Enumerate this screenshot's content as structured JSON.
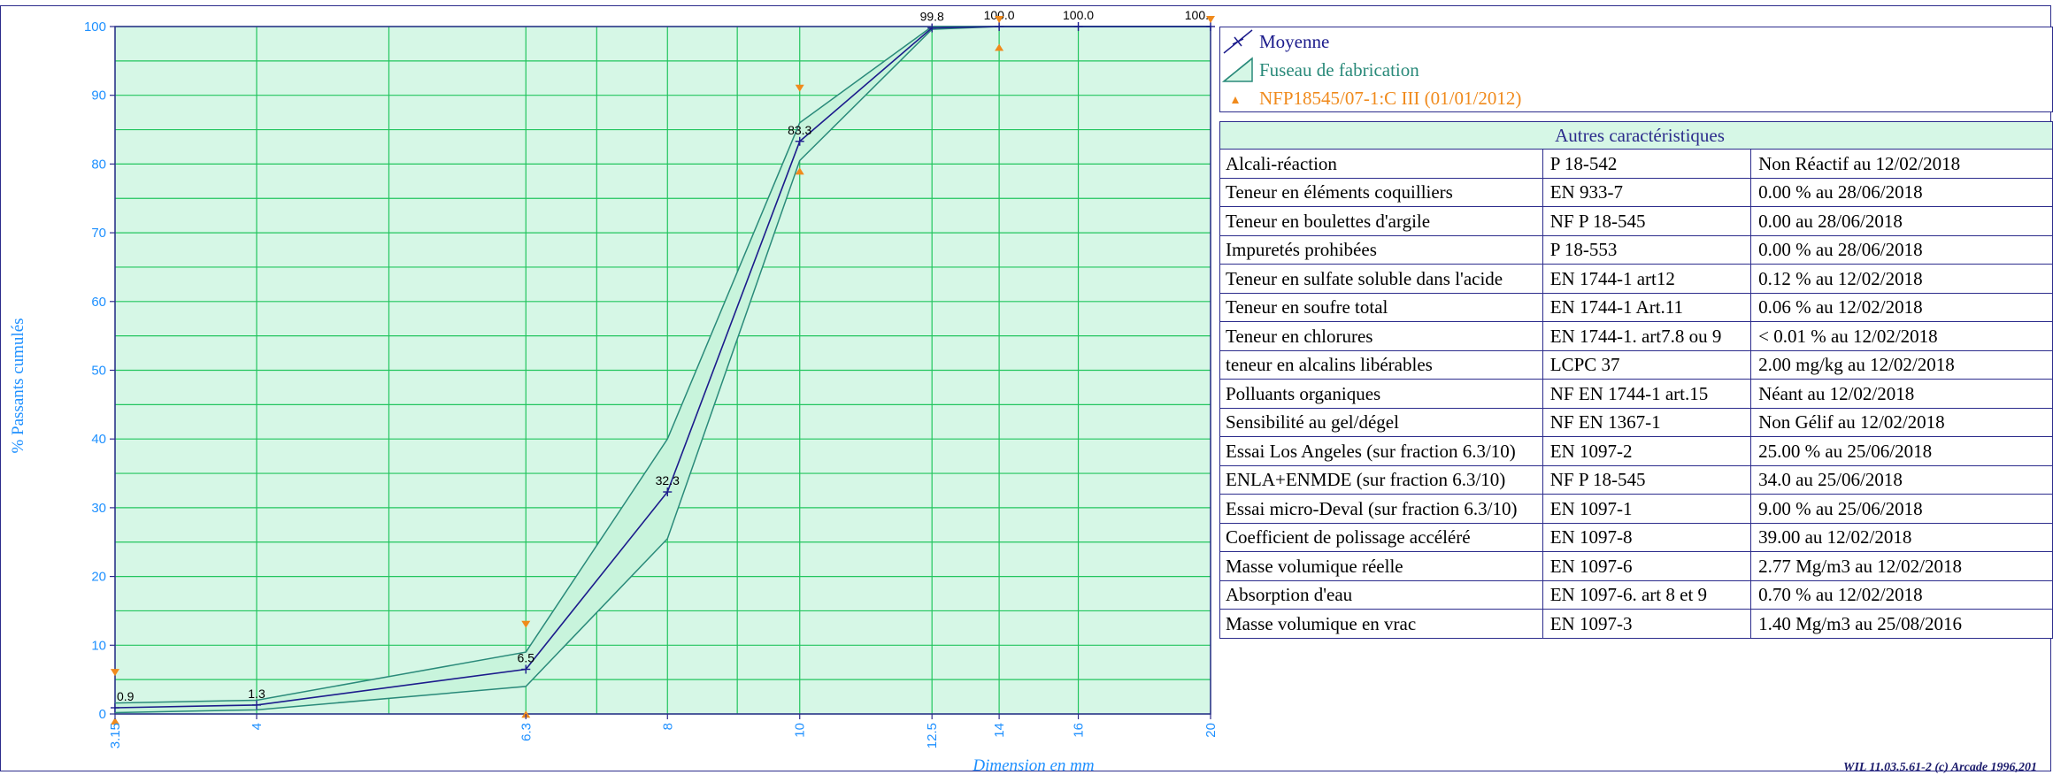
{
  "chart_data": {
    "type": "line",
    "xlabel": "Dimension en mm",
    "ylabel": "% Passants cumulés",
    "ylim": [
      0,
      100
    ],
    "x_scale": "log",
    "x_ticks": [
      "3.15",
      "4",
      "6.3",
      "8",
      "10",
      "12.5",
      "14",
      "16",
      "20"
    ],
    "y_ticks": [
      "0",
      "10",
      "20",
      "30",
      "40",
      "50",
      "60",
      "70",
      "80",
      "90",
      "100"
    ],
    "grid": true,
    "legend_position": "right",
    "series": [
      {
        "name": "Moyenne",
        "color": "#1c1c8c",
        "x": [
          3.15,
          4,
          6.3,
          8,
          10,
          12.5,
          14,
          16,
          20
        ],
        "y": [
          0.9,
          1.3,
          6.5,
          32.3,
          83.3,
          99.8,
          100.0,
          100.0,
          100.0
        ],
        "labels": [
          "0.9",
          "1.3",
          "6.5",
          "32.3",
          "83.3",
          "99.8",
          "100.0",
          "100.0",
          "100."
        ]
      },
      {
        "name": "Fuseau de fabrication",
        "color": "#d6f7e6",
        "x": [
          3.15,
          4,
          6.3,
          8,
          10,
          12.5,
          14,
          16,
          20
        ],
        "upper": [
          1.6,
          2.0,
          9.0,
          40.0,
          86.0,
          100,
          100,
          100,
          100
        ],
        "lower": [
          0.2,
          0.6,
          4.0,
          25.5,
          80.5,
          99.6,
          100,
          100,
          100
        ]
      },
      {
        "name": "NFP18545/07-1:C III (01/01/2012)",
        "color": "#f08a1c",
        "upper_marks": [
          {
            "x": 3.15,
            "y": 5
          },
          {
            "x": 6.3,
            "y": 12
          },
          {
            "x": 10,
            "y": 90
          },
          {
            "x": 14,
            "y": 100
          },
          {
            "x": 20,
            "y": 100
          }
        ],
        "lower_marks": [
          {
            "x": 3.15,
            "y": 0
          },
          {
            "x": 6.3,
            "y": 1
          },
          {
            "x": 10,
            "y": 80
          },
          {
            "x": 14,
            "y": 98
          }
        ]
      }
    ]
  },
  "legend": {
    "moyenne": "Moyenne",
    "fuseau": "Fuseau de fabrication",
    "norme": "NFP18545/07-1:C III (01/01/2012)"
  },
  "table": {
    "title": "Autres caractéristiques",
    "rows": [
      {
        "name": "Alcali-réaction",
        "norm": "P 18-542",
        "value": "Non Réactif au 12/02/2018"
      },
      {
        "name": "Teneur en éléments coquilliers",
        "norm": "EN 933-7",
        "value": "0.00 % au 28/06/2018"
      },
      {
        "name": "Teneur en boulettes d'argile",
        "norm": "NF P 18-545",
        "value": "0.00  au 28/06/2018"
      },
      {
        "name": "Impuretés prohibées",
        "norm": "P 18-553",
        "value": "0.00 % au 28/06/2018"
      },
      {
        "name": "Teneur en sulfate soluble dans l'acide",
        "norm": "EN 1744-1 art12",
        "value": "0.12 % au 12/02/2018"
      },
      {
        "name": "Teneur en soufre total",
        "norm": "EN 1744-1 Art.11",
        "value": "0.06 % au 12/02/2018"
      },
      {
        "name": "Teneur en chlorures",
        "norm": "EN 1744-1. art7.8 ou 9",
        "value": "< 0.01 % au 12/02/2018"
      },
      {
        "name": "teneur en alcalins libérables",
        "norm": "LCPC 37",
        "value": "2.00 mg/kg  au 12/02/2018"
      },
      {
        "name": "Polluants organiques",
        "norm": "NF EN 1744-1 art.15",
        "value": "Néant  au 12/02/2018"
      },
      {
        "name": "Sensibilité au gel/dégel",
        "norm": "NF EN 1367-1",
        "value": "Non Gélif au 12/02/2018"
      },
      {
        "name": "Essai Los Angeles (sur fraction 6.3/10)",
        "norm": "EN 1097-2",
        "value": "25.00 %  au 25/06/2018"
      },
      {
        "name": "ENLA+ENMDE (sur fraction 6.3/10)",
        "norm": "NF P 18-545",
        "value": "34.0  au 25/06/2018"
      },
      {
        "name": "Essai micro-Deval (sur fraction 6.3/10)",
        "norm": "EN 1097-1",
        "value": "9.00 %  au 25/06/2018"
      },
      {
        "name": "Coefficient de polissage accéléré",
        "norm": "EN 1097-8",
        "value": "39.00  au 12/02/2018"
      },
      {
        "name": "Masse volumique réelle",
        "norm": "EN 1097-6",
        "value": "2.77 Mg/m3  au 12/02/2018"
      },
      {
        "name": "Absorption d'eau",
        "norm": "EN 1097-6. art 8 et 9",
        "value": "0.70 % au 12/02/2018"
      },
      {
        "name": "Masse volumique en vrac",
        "norm": "EN 1097-3",
        "value": "1.40 Mg/m3  au 25/08/2016"
      }
    ]
  },
  "footer": "WIL 11.03.5.61-2 (c) Arcade 1996,201"
}
